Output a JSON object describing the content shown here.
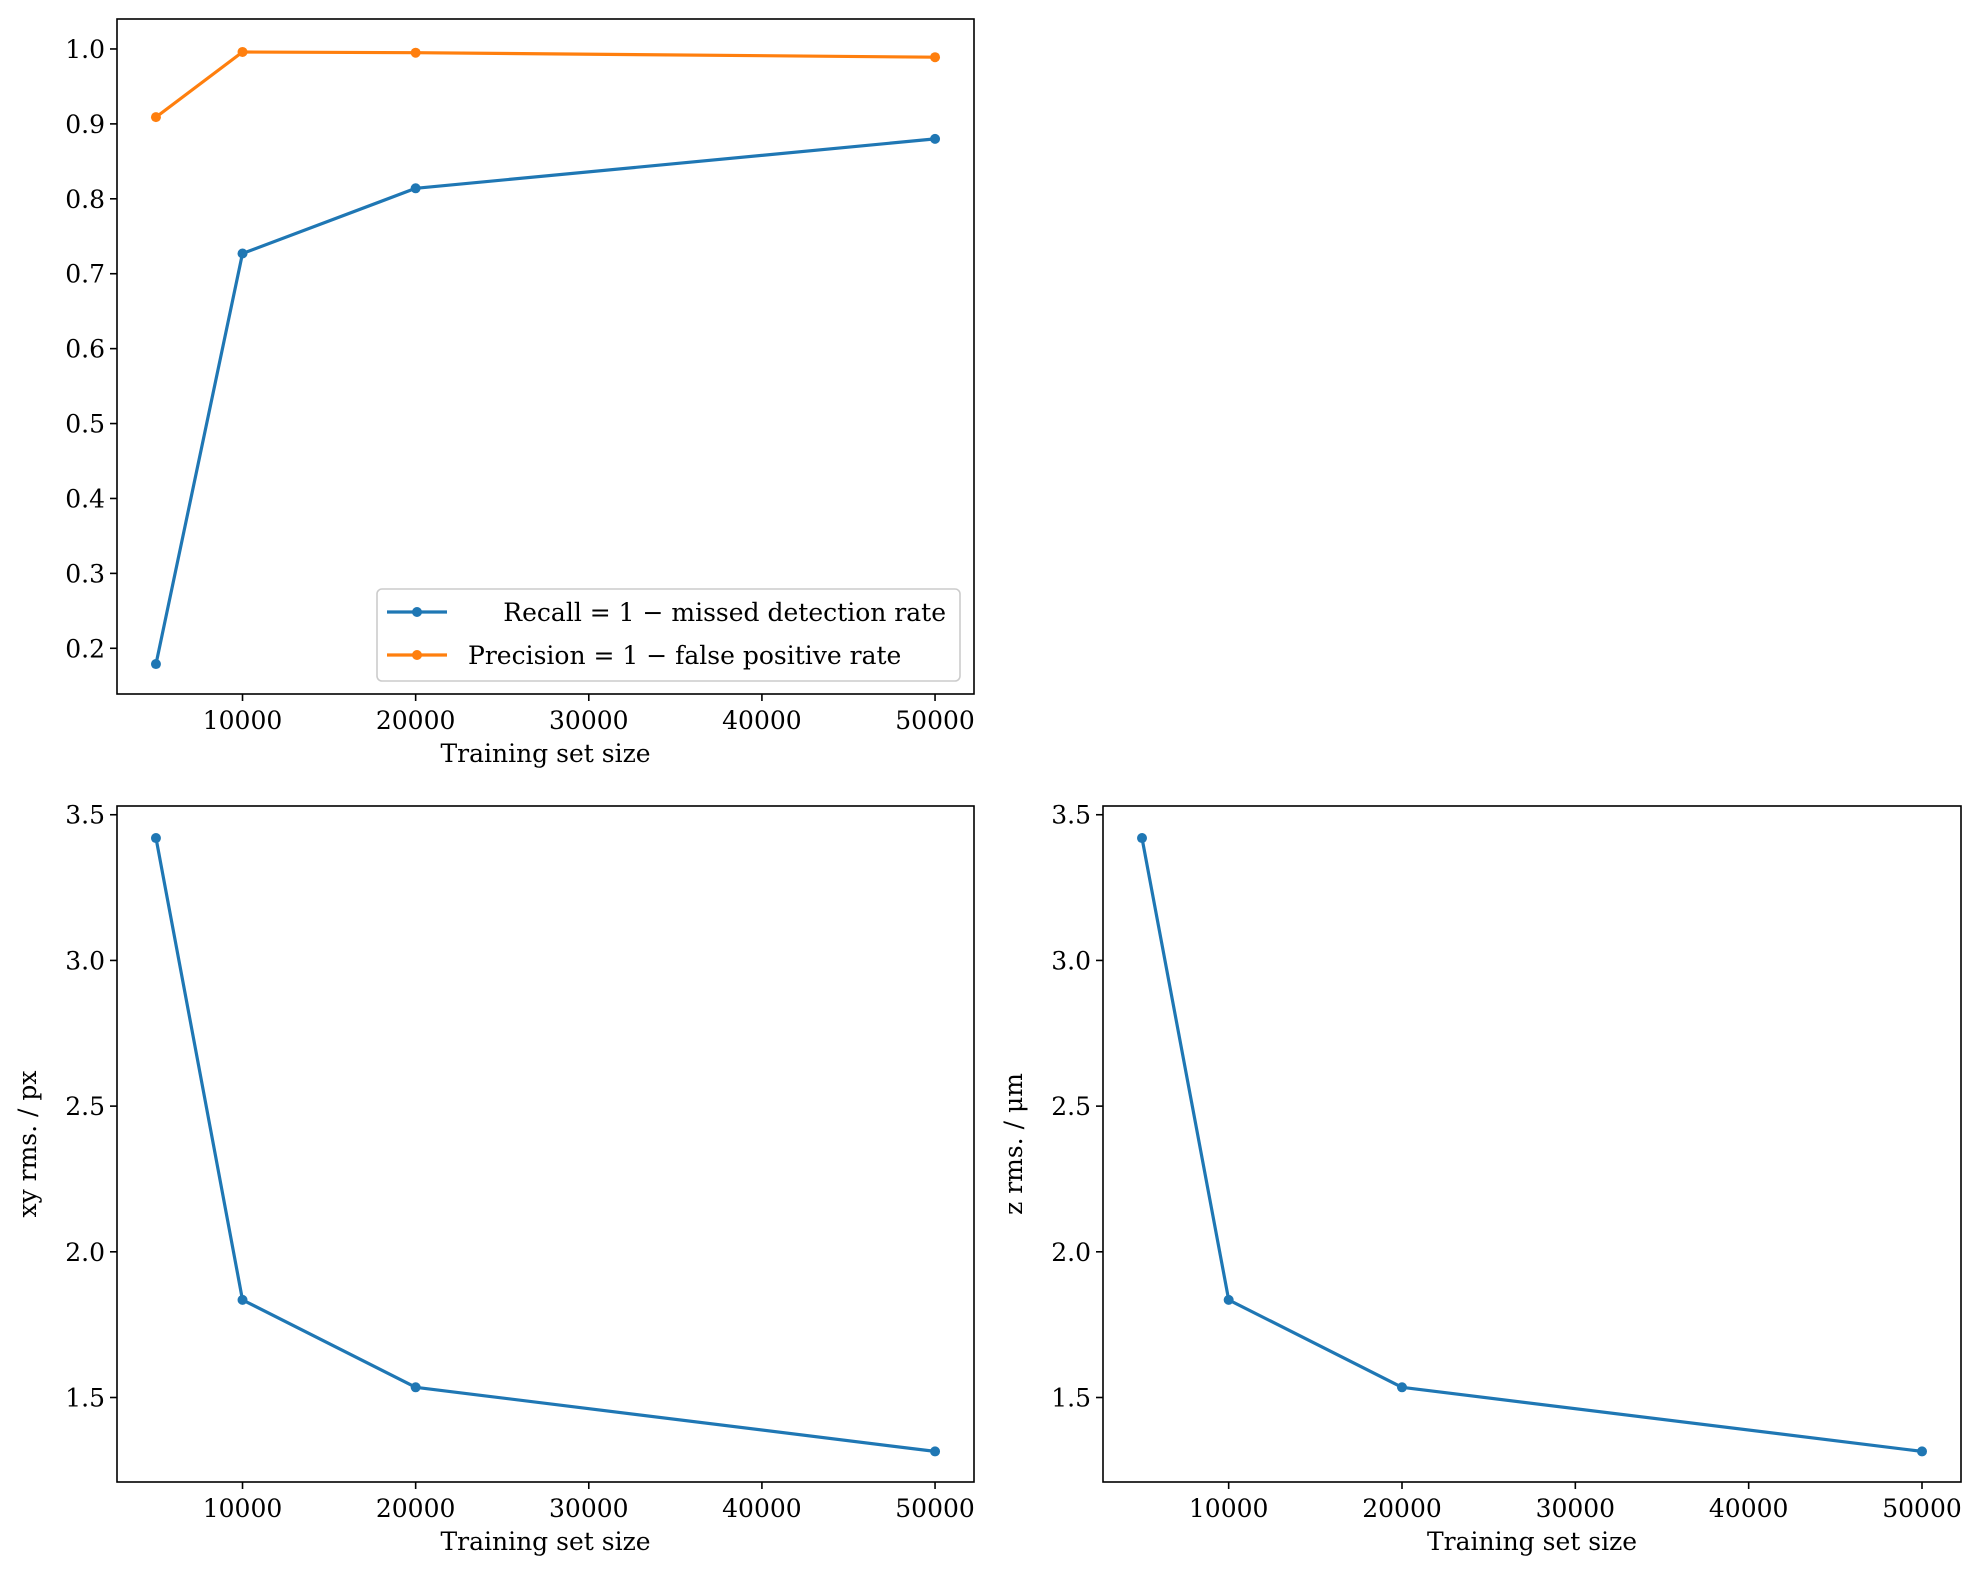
{
  "chart_data": [
    {
      "type": "line",
      "x": [
        5000,
        10000,
        20000,
        50000
      ],
      "series": [
        {
          "name": "Recall = 1 − missed detection rate",
          "color": "#1f77b4",
          "values": [
            0.179,
            0.727,
            0.814,
            0.88
          ]
        },
        {
          "name": "Precision = 1 − false positive rate",
          "color": "#ff7f0e",
          "values": [
            0.909,
            0.996,
            0.995,
            0.989
          ]
        }
      ],
      "xlabel": "Training set size",
      "ylabel": "",
      "xlim": [
        2750,
        52250
      ],
      "ylim": [
        0.139,
        1.04
      ],
      "xticks": [
        10000,
        20000,
        30000,
        40000,
        50000
      ],
      "xtick_labels": [
        "10000",
        "20000",
        "30000",
        "40000",
        "50000"
      ],
      "yticks": [
        0.2,
        0.3,
        0.4,
        0.5,
        0.6,
        0.7,
        0.8,
        0.9,
        1.0
      ],
      "ytick_labels": [
        "0.2",
        "0.3",
        "0.4",
        "0.5",
        "0.6",
        "0.7",
        "0.8",
        "0.9",
        "1.0"
      ],
      "grid": false,
      "legend": "lower-right"
    },
    {
      "type": "line",
      "x": [
        5000,
        10000,
        20000,
        50000
      ],
      "series": [
        {
          "color": "#1f77b4",
          "values": [
            3.42,
            1.835,
            1.535,
            1.315
          ]
        }
      ],
      "xlabel": "Training set size",
      "ylabel": "xy rms. / px",
      "xlim": [
        2750,
        52250
      ],
      "ylim": [
        1.21,
        3.53
      ],
      "xticks": [
        10000,
        20000,
        30000,
        40000,
        50000
      ],
      "xtick_labels": [
        "10000",
        "20000",
        "30000",
        "40000",
        "50000"
      ],
      "yticks": [
        1.5,
        2.0,
        2.5,
        3.0,
        3.5
      ],
      "ytick_labels": [
        "1.5",
        "2.0",
        "2.5",
        "3.0",
        "3.5"
      ],
      "grid": false
    },
    {
      "type": "line",
      "x": [
        5000,
        10000,
        20000,
        50000
      ],
      "series": [
        {
          "color": "#1f77b4",
          "values": [
            3.42,
            1.835,
            1.535,
            1.315
          ]
        }
      ],
      "xlabel": "Training set size",
      "ylabel": "z rms. / μm",
      "xlim": [
        2750,
        52250
      ],
      "ylim": [
        1.21,
        3.53
      ],
      "xticks": [
        10000,
        20000,
        30000,
        40000,
        50000
      ],
      "xtick_labels": [
        "10000",
        "20000",
        "30000",
        "40000",
        "50000"
      ],
      "yticks": [
        1.5,
        2.0,
        2.5,
        3.0,
        3.5
      ],
      "ytick_labels": [
        "1.5",
        "2.0",
        "2.5",
        "3.0",
        "3.5"
      ],
      "grid": false
    }
  ]
}
